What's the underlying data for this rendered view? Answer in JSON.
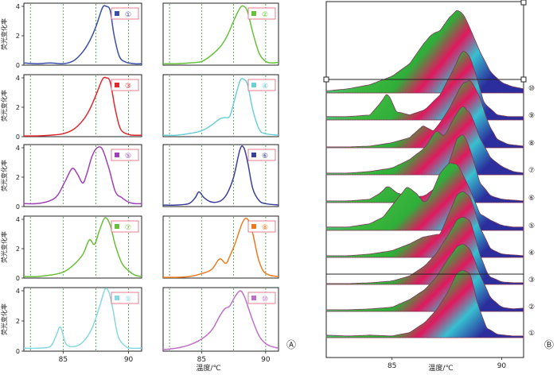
{
  "chart_data": [
    {
      "type": "line",
      "title": "",
      "panel_label": "Ⓐ",
      "xlabel": "温度/℃",
      "ylabel": "荧光变化率",
      "xlim": [
        82,
        91
      ],
      "ylim": [
        0,
        4
      ],
      "x_ticks": [
        85,
        90
      ],
      "y_ticks": [
        0,
        2,
        4
      ],
      "vertical_dashed_lines": [
        82.5,
        85,
        87.5,
        90
      ],
      "dashed_line_color": "#2e9e2e",
      "grid": false,
      "legend_position": "top-right",
      "series": [
        {
          "name": "①",
          "color": "#3a4fa8",
          "x": [
            82,
            83,
            84,
            85,
            85.8,
            86.5,
            87,
            87.5,
            88,
            88.3,
            88.6,
            88.9,
            89.3,
            89.8,
            90.5,
            91
          ],
          "y": [
            0.15,
            0.1,
            0.15,
            0.1,
            0.3,
            0.9,
            1.6,
            2.6,
            3.9,
            4.0,
            3.7,
            2.0,
            0.6,
            0.2,
            0.1,
            0.1
          ]
        },
        {
          "name": "②",
          "color": "#66c23a",
          "x": [
            82,
            83,
            84,
            85,
            85.8,
            86.5,
            87,
            87.5,
            88,
            88.3,
            88.6,
            89,
            89.5,
            90,
            90.5,
            91
          ],
          "y": [
            0.1,
            0.1,
            0.15,
            0.25,
            0.7,
            1.3,
            2.0,
            3.0,
            3.9,
            4.0,
            3.6,
            2.2,
            0.8,
            0.25,
            0.15,
            0.2
          ]
        },
        {
          "name": "③",
          "color": "#e0282e",
          "x": [
            82,
            83,
            84,
            85,
            85.8,
            86.5,
            87,
            87.5,
            88,
            88.3,
            88.6,
            89,
            89.4,
            90,
            90.5,
            91
          ],
          "y": [
            0.05,
            0.05,
            0.1,
            0.2,
            0.5,
            1.1,
            1.8,
            2.8,
            3.9,
            4.0,
            3.7,
            1.8,
            0.5,
            0.15,
            0.1,
            0.1
          ]
        },
        {
          "name": "④",
          "color": "#6dcfd8",
          "x": [
            82,
            83,
            84,
            85,
            85.8,
            86.4,
            86.8,
            87.2,
            87.6,
            88,
            88.3,
            88.6,
            89,
            89.5,
            90,
            91
          ],
          "y": [
            0.1,
            0.1,
            0.2,
            0.4,
            0.8,
            1.2,
            1.3,
            1.4,
            2.6,
            3.8,
            3.9,
            3.5,
            1.8,
            0.5,
            0.2,
            0.1
          ]
        },
        {
          "name": "⑤",
          "color": "#a040b8",
          "x": [
            82,
            83,
            84,
            84.6,
            85.2,
            85.7,
            86.1,
            86.5,
            86.8,
            87.2,
            87.6,
            88,
            88.5,
            89,
            89.5,
            90,
            90.5,
            91
          ],
          "y": [
            0.2,
            0.2,
            0.4,
            0.8,
            1.8,
            2.6,
            2.2,
            1.6,
            2.2,
            3.4,
            4.0,
            3.9,
            2.6,
            1.0,
            0.6,
            0.3,
            0.2,
            0.2
          ]
        },
        {
          "name": "⑥",
          "color": "#3a3f98",
          "x": [
            82,
            83,
            84,
            84.5,
            84.8,
            85.2,
            85.8,
            86.5,
            87,
            87.5,
            88,
            88.3,
            88.6,
            89,
            89.5,
            90,
            91
          ],
          "y": [
            0.1,
            0.1,
            0.2,
            0.6,
            1.0,
            0.6,
            0.3,
            0.4,
            0.9,
            2.0,
            3.9,
            4.0,
            3.0,
            1.2,
            0.4,
            0.2,
            0.1
          ]
        },
        {
          "name": "⑦",
          "color": "#6abf3a",
          "x": [
            82,
            83,
            84,
            85,
            85.8,
            86.5,
            87,
            87.4,
            87.8,
            88.2,
            88.6,
            89,
            89.5,
            90,
            90.5,
            91
          ],
          "y": [
            0.1,
            0.1,
            0.2,
            0.4,
            0.9,
            1.6,
            2.6,
            2.3,
            3.3,
            4.1,
            3.6,
            2.2,
            1.0,
            0.5,
            0.2,
            0.1
          ]
        },
        {
          "name": "⑧",
          "color": "#ee7a20",
          "x": [
            82,
            83,
            84,
            85,
            85.8,
            86.4,
            86.9,
            87.2,
            87.6,
            88.2,
            88.6,
            89,
            89.4,
            89.8,
            90.3,
            91
          ],
          "y": [
            0.05,
            0.05,
            0.1,
            0.3,
            0.6,
            1.3,
            1.0,
            1.5,
            2.3,
            3.8,
            4.0,
            3.0,
            1.4,
            0.5,
            0.2,
            0.1
          ]
        },
        {
          "name": "⑨",
          "color": "#8ad8e0",
          "x": [
            82,
            83,
            84,
            84.4,
            84.8,
            85.2,
            85.8,
            86.5,
            87.2,
            87.8,
            88.2,
            88.5,
            88.8,
            89.2,
            89.8,
            90.3,
            91
          ],
          "y": [
            0.2,
            0.2,
            0.3,
            0.9,
            1.6,
            0.5,
            0.3,
            0.6,
            1.5,
            3.0,
            4.1,
            3.9,
            2.8,
            1.0,
            0.3,
            0.2,
            0.2
          ]
        },
        {
          "name": "⑩",
          "color": "#c070c8",
          "x": [
            82,
            83,
            84,
            85,
            85.8,
            86.4,
            86.8,
            87.2,
            87.6,
            88,
            88.3,
            88.6,
            89,
            89.5,
            90,
            90.5,
            91
          ],
          "y": [
            0.1,
            0.2,
            0.4,
            0.8,
            1.4,
            2.3,
            2.8,
            3.0,
            3.6,
            4.0,
            3.7,
            3.0,
            2.0,
            1.0,
            0.5,
            0.3,
            0.2
          ]
        }
      ]
    },
    {
      "type": "area",
      "title": "",
      "panel_label": "Ⓑ",
      "xlabel": "温度/℃",
      "xlim": [
        82,
        91
      ],
      "x_ticks": [
        85,
        90
      ],
      "grid": false,
      "stacked_waterfall": true,
      "row_labels": [
        "①",
        "②",
        "③",
        "④",
        "⑤",
        "⑥",
        "⑦",
        "⑧",
        "⑨",
        "⑩"
      ],
      "gradient_colors": [
        "#5fd3d9",
        "#3db83a",
        "#e0165e",
        "#2a2c9c"
      ]
    }
  ]
}
